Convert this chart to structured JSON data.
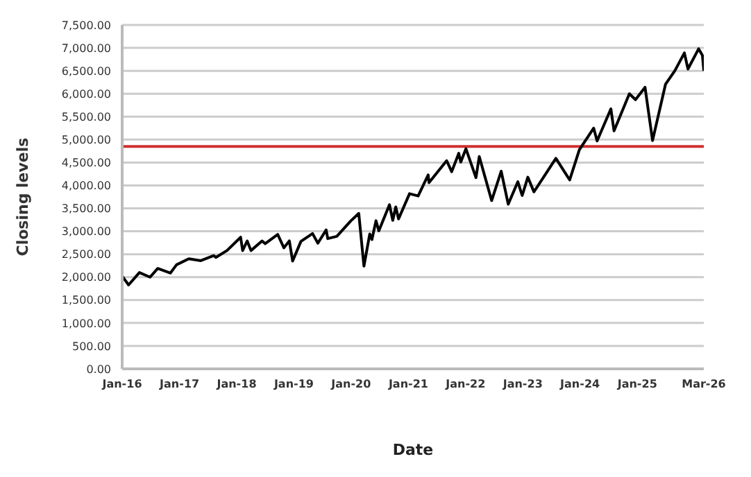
{
  "chart_data": {
    "type": "line",
    "xlabel": "Date",
    "ylabel": "Closing levels",
    "x": [
      "2016-01-04",
      "2016-02-11",
      "2016-04-20",
      "2016-06-27",
      "2016-08-15",
      "2016-11-04",
      "2016-12-13",
      "2017-03-01",
      "2017-05-17",
      "2017-08-08",
      "2017-08-21",
      "2017-10-31",
      "2018-01-26",
      "2018-02-08",
      "2018-03-09",
      "2018-04-02",
      "2018-06-12",
      "2018-07-02",
      "2018-09-20",
      "2018-10-29",
      "2018-12-03",
      "2018-12-24",
      "2019-02-15",
      "2019-04-30",
      "2019-06-03",
      "2019-07-26",
      "2019-08-05",
      "2019-10-02",
      "2019-12-31",
      "2020-02-19",
      "2020-03-23",
      "2020-04-29",
      "2020-05-13",
      "2020-06-08",
      "2020-06-26",
      "2020-09-02",
      "2020-09-23",
      "2020-10-12",
      "2020-10-30",
      "2021-01-08",
      "2021-03-04",
      "2021-05-07",
      "2021-05-12",
      "2021-09-02",
      "2021-10-04",
      "2021-11-18",
      "2021-12-01",
      "2022-01-03",
      "2022-03-08",
      "2022-03-29",
      "2022-06-16",
      "2022-08-16",
      "2022-09-30",
      "2022-11-30",
      "2022-12-28",
      "2023-02-02",
      "2023-03-13",
      "2023-07-31",
      "2023-10-27",
      "2023-12-28",
      "2024-03-28",
      "2024-04-19",
      "2024-07-16",
      "2024-08-05",
      "2024-11-11",
      "2024-12-20",
      "2025-02-19",
      "2025-04-08",
      "2025-06-30",
      "2025-08-28",
      "2025-10-28",
      "2025-11-20",
      "2026-01-27",
      "2026-02-20",
      "2026-03-01"
    ],
    "series": [
      {
        "color": "#000000",
        "values": [
          2010,
          1830,
          2100,
          2000,
          2190,
          2090,
          2270,
          2400,
          2360,
          2470,
          2430,
          2580,
          2870,
          2580,
          2790,
          2580,
          2790,
          2730,
          2930,
          2640,
          2790,
          2350,
          2780,
          2950,
          2740,
          3030,
          2840,
          2890,
          3230,
          3390,
          2240,
          2940,
          2820,
          3230,
          3010,
          3580,
          3240,
          3530,
          3270,
          3820,
          3770,
          4230,
          4060,
          4540,
          4300,
          4700,
          4510,
          4800,
          4170,
          4630,
          3670,
          4310,
          3590,
          4080,
          3780,
          4180,
          3860,
          4590,
          4120,
          4780,
          5250,
          4970,
          5670,
          5190,
          6000,
          5870,
          6140,
          4980,
          6210,
          6500,
          6890,
          6540,
          6980,
          6840,
          6500
        ]
      }
    ],
    "xlim": [
      "2016-01-01",
      "2026-03-01"
    ],
    "xticks": [
      {
        "value": "2016-01-01",
        "label": "Jan-16"
      },
      {
        "value": "2017-01-01",
        "label": "Jan-17"
      },
      {
        "value": "2018-01-01",
        "label": "Jan-18"
      },
      {
        "value": "2019-01-01",
        "label": "Jan-19"
      },
      {
        "value": "2020-01-01",
        "label": "Jan-20"
      },
      {
        "value": "2021-01-01",
        "label": "Jan-21"
      },
      {
        "value": "2022-01-01",
        "label": "Jan-22"
      },
      {
        "value": "2023-01-01",
        "label": "Jan-23"
      },
      {
        "value": "2024-01-01",
        "label": "Jan-24"
      },
      {
        "value": "2025-01-01",
        "label": "Jan-25"
      },
      {
        "value": "2026-03-01",
        "label": "Mar-26"
      }
    ],
    "ylim": [
      0,
      7500
    ],
    "yticks": [
      {
        "value": 0,
        "label": "0.00"
      },
      {
        "value": 500,
        "label": "500.00"
      },
      {
        "value": 1000,
        "label": "1,000.00"
      },
      {
        "value": 1500,
        "label": "1,500.00"
      },
      {
        "value": 2000,
        "label": "2,000.00"
      },
      {
        "value": 2500,
        "label": "2,500.00"
      },
      {
        "value": 3000,
        "label": "3,000.00"
      },
      {
        "value": 3500,
        "label": "3,500.00"
      },
      {
        "value": 4000,
        "label": "4,000.00"
      },
      {
        "value": 4500,
        "label": "4,500.00"
      },
      {
        "value": 5000,
        "label": "5,000.00"
      },
      {
        "value": 5500,
        "label": "5,500.00"
      },
      {
        "value": 6000,
        "label": "6,000.00"
      },
      {
        "value": 6500,
        "label": "6,500.00"
      },
      {
        "value": 7000,
        "label": "7,000.00"
      },
      {
        "value": 7500,
        "label": "7,500.00"
      }
    ],
    "ref_lines": [
      {
        "axis": "y",
        "value": 4850,
        "color": "#d03030"
      }
    ],
    "grid": "y",
    "marker": "none",
    "line_style": "solid"
  }
}
